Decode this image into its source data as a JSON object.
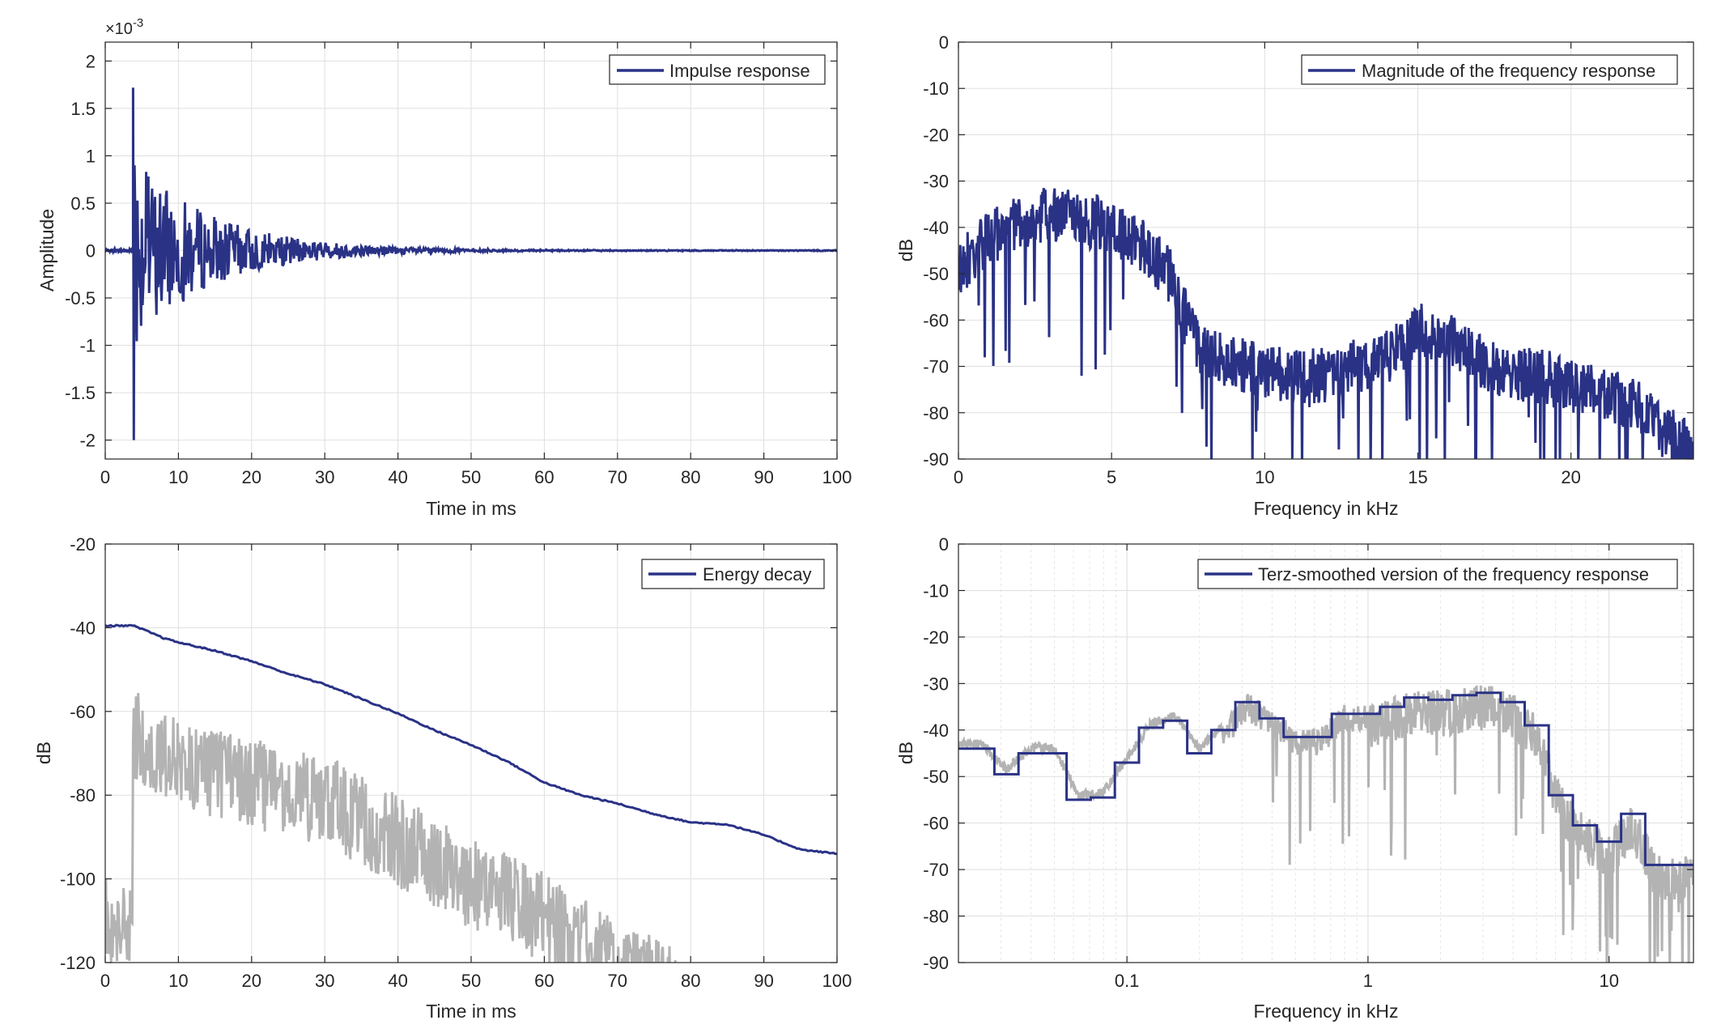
{
  "chart_data": [
    {
      "id": "p1",
      "type": "line",
      "xlabel": "Time in ms",
      "ylabel": "Amplitude",
      "xlim": [
        0,
        100
      ],
      "ylim": [
        -2.2,
        2.2
      ],
      "xticks": [
        0,
        10,
        20,
        30,
        40,
        50,
        60,
        70,
        80,
        90,
        100
      ],
      "xtick_labels": [
        "0",
        "10",
        "20",
        "30",
        "40",
        "50",
        "60",
        "70",
        "80",
        "90",
        "100"
      ],
      "yticks": [
        -2,
        -1.5,
        -1,
        -0.5,
        0,
        0.5,
        1,
        1.5,
        2
      ],
      "ytick_labels": [
        "-2",
        "-1.5",
        "-1",
        "-0.5",
        "0",
        "0.5",
        "1",
        "1.5",
        "2"
      ],
      "exponent_base": "×10",
      "exponent_power": "-3",
      "grid": true,
      "legend": "top-right",
      "series": [
        {
          "name": "Impulse response",
          "color": "#2a3286",
          "onset_ms": 3.8,
          "peak_positive": 1.72,
          "peak_negative": -2.0,
          "decay_to_zero_ms": 50
        }
      ]
    },
    {
      "id": "p2",
      "type": "line",
      "xlabel": "Frequency in kHz",
      "ylabel": "dB",
      "xlim": [
        0,
        24
      ],
      "ylim": [
        -90,
        0
      ],
      "xticks": [
        0,
        5,
        10,
        15,
        20
      ],
      "xtick_labels": [
        "0",
        "5",
        "10",
        "15",
        "20"
      ],
      "yticks": [
        0,
        -10,
        -20,
        -30,
        -40,
        -50,
        -60,
        -70,
        -80,
        -90
      ],
      "ytick_labels": [
        "0",
        "-10",
        "-20",
        "-30",
        "-40",
        "-50",
        "-60",
        "-70",
        "-80",
        "-90"
      ],
      "grid": true,
      "legend": "top-right",
      "series": [
        {
          "name": "Magnitude of the frequency response",
          "color": "#2a3286",
          "envelope_khz": [
            0,
            1,
            2,
            3,
            4,
            5,
            6,
            7,
            7.8,
            9,
            10,
            11,
            12,
            13,
            14,
            15,
            16,
            17,
            18,
            19,
            20,
            21,
            22,
            23,
            24
          ],
          "envelope_db": [
            -43,
            -36,
            -33,
            -31,
            -32,
            -34,
            -38,
            -45,
            -60,
            -63,
            -65,
            -66,
            -66,
            -64,
            -62,
            -56,
            -58,
            -63,
            -66,
            -66,
            -68,
            -70,
            -72,
            -78,
            -82
          ]
        }
      ]
    },
    {
      "id": "p3",
      "type": "line",
      "xlabel": "Time in ms",
      "ylabel": "dB",
      "xlim": [
        0,
        100
      ],
      "ylim": [
        -120,
        -20
      ],
      "xticks": [
        0,
        10,
        20,
        30,
        40,
        50,
        60,
        70,
        80,
        90,
        100
      ],
      "xtick_labels": [
        "0",
        "10",
        "20",
        "30",
        "40",
        "50",
        "60",
        "70",
        "80",
        "90",
        "100"
      ],
      "yticks": [
        -20,
        -40,
        -60,
        -80,
        -100,
        -120
      ],
      "ytick_labels": [
        "-20",
        "-40",
        "-60",
        "-80",
        "-100",
        "-120"
      ],
      "grid": true,
      "legend": "top-right",
      "series": [
        {
          "name": "Energy decay",
          "color": "#2a3286",
          "x": [
            0,
            3.8,
            6,
            8,
            10,
            15,
            20,
            25,
            30,
            35,
            40,
            45,
            50,
            55,
            60,
            65,
            70,
            75,
            80,
            85,
            90,
            95,
            100
          ],
          "y": [
            -39.5,
            -39.5,
            -41,
            -42.5,
            -43.5,
            -45.5,
            -48,
            -51,
            -53.5,
            -57,
            -60.5,
            -64.5,
            -68,
            -72,
            -77,
            -80,
            -82,
            -84.5,
            -86.5,
            -87,
            -89.5,
            -93,
            -94
          ]
        },
        {
          "name": "",
          "color": "#b3b3b3",
          "envelope_x": [
            0,
            3.8,
            10,
            20,
            30,
            40,
            50,
            60,
            70,
            78
          ],
          "envelope_y": [
            -100,
            -54,
            -61,
            -66,
            -70,
            -80,
            -90,
            -98,
            -110,
            -116
          ]
        }
      ]
    },
    {
      "id": "p4",
      "type": "line",
      "xscale": "log",
      "xlabel": "Frequency in kHz",
      "ylabel": "dB",
      "xlim": [
        0.02,
        22.4
      ],
      "ylim": [
        -90,
        0
      ],
      "xticks": [
        0.1,
        1,
        10
      ],
      "xtick_labels": [
        "0.1",
        "1",
        "10"
      ],
      "yticks": [
        0,
        -10,
        -20,
        -30,
        -40,
        -50,
        -60,
        -70,
        -80,
        -90
      ],
      "ytick_labels": [
        "0",
        "-10",
        "-20",
        "-30",
        "-40",
        "-50",
        "-60",
        "-70",
        "-80",
        "-90"
      ],
      "grid": true,
      "legend": "top-right",
      "series": [
        {
          "name": "Terz-smoothed version of the frequency response",
          "color": "#2a3286",
          "step": true,
          "band_edges_khz": [
            0.02,
            0.0224,
            0.0282,
            0.0355,
            0.0447,
            0.0562,
            0.0708,
            0.0891,
            0.1122,
            0.1413,
            0.1778,
            0.2239,
            0.2818,
            0.3548,
            0.4467,
            0.5623,
            0.7079,
            0.8913,
            1.122,
            1.413,
            1.778,
            2.239,
            2.818,
            3.548,
            4.467,
            5.623,
            7.079,
            8.913,
            11.22,
            14.13,
            17.78,
            22.4
          ],
          "band_db": [
            -44,
            -44,
            -49.5,
            -45,
            -45,
            -55,
            -54.5,
            -47,
            -39.5,
            -38,
            -45,
            -40,
            -34,
            -37.5,
            -41.5,
            -41.5,
            -36.5,
            -36.5,
            -35,
            -33,
            -33.5,
            -32.5,
            -32,
            -34,
            -39,
            -54,
            -60.5,
            -64,
            -58,
            -69,
            -69
          ]
        },
        {
          "name": "",
          "color": "#b3b3b3"
        }
      ]
    }
  ]
}
